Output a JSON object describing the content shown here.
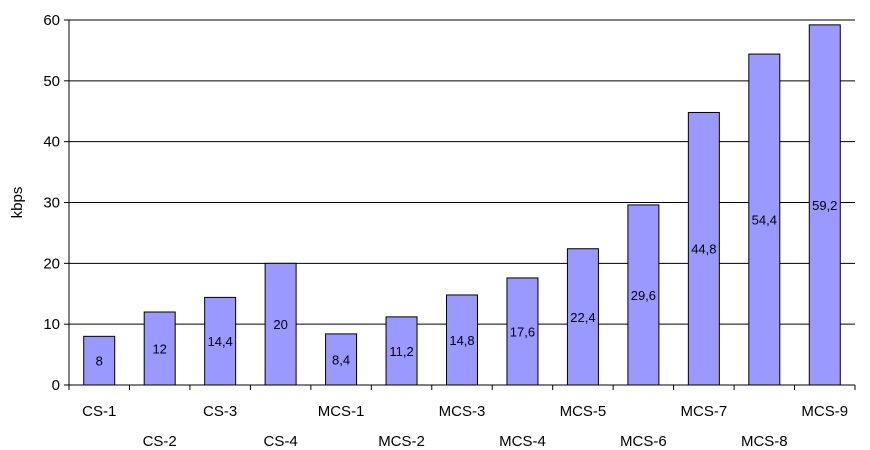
{
  "chart_data": {
    "type": "bar",
    "title": "",
    "xlabel": "",
    "ylabel": "kbps",
    "ylim": [
      0,
      60
    ],
    "yticks": [
      0,
      10,
      20,
      30,
      40,
      50,
      60
    ],
    "ytick_labels": [
      "0",
      "10",
      "20",
      "30",
      "40",
      "50",
      "60"
    ],
    "grid": true,
    "categories": [
      "CS-1",
      "CS-2",
      "CS-3",
      "CS-4",
      "MCS-1",
      "MCS-2",
      "MCS-3",
      "MCS-4",
      "MCS-5",
      "MCS-6",
      "MCS-7",
      "MCS-8",
      "MCS-9"
    ],
    "values": [
      8,
      12,
      14.4,
      20,
      8.4,
      11.2,
      14.8,
      17.6,
      22.4,
      29.6,
      44.8,
      54.4,
      59.2
    ],
    "value_labels": [
      "8",
      "12",
      "14,4",
      "20",
      "8,4",
      "11,2",
      "14,8",
      "17,6",
      "22,4",
      "29,6",
      "44,8",
      "54,4",
      "59,2"
    ],
    "colors": {
      "bar_fill": "#9999ff",
      "bar_stroke": "#000000",
      "grid": "#000000"
    }
  }
}
